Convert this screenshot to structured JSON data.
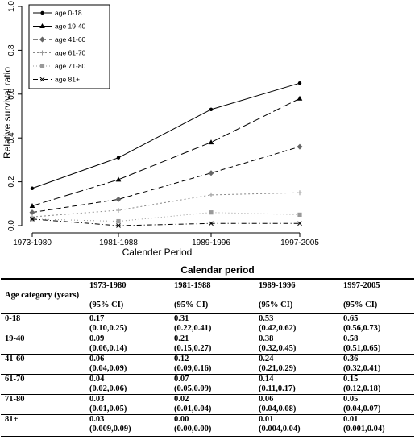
{
  "chart_data": {
    "type": "line",
    "categories": [
      "1973-1980",
      "1981-1988",
      "1989-1996",
      "1997-2005"
    ],
    "xlabel": "Calender Period",
    "ylabel": "Relative survival ratio",
    "ylim": [
      0,
      1.0
    ],
    "yticks": [
      "0.0",
      "0.2",
      "0.4",
      "0.6",
      "0.8",
      "1.0"
    ],
    "legend_position": "top-left",
    "grid": false,
    "series": [
      {
        "name": "age 0-18",
        "values": [
          0.17,
          0.31,
          0.53,
          0.65
        ],
        "marker": "circle",
        "dash": "solid"
      },
      {
        "name": "age 19-40",
        "values": [
          0.09,
          0.21,
          0.38,
          0.58
        ],
        "marker": "triangle",
        "dash": "long-dash"
      },
      {
        "name": "age 41-60",
        "values": [
          0.06,
          0.12,
          0.24,
          0.36
        ],
        "marker": "diamond",
        "dash": "dash"
      },
      {
        "name": "age 61-70",
        "values": [
          0.04,
          0.07,
          0.14,
          0.15
        ],
        "marker": "plus",
        "dash": "dot"
      },
      {
        "name": "age 71-80",
        "values": [
          0.03,
          0.02,
          0.06,
          0.05
        ],
        "marker": "square",
        "dash": "dense-dot"
      },
      {
        "name": "age 81+",
        "values": [
          0.03,
          0.0,
          0.01,
          0.01
        ],
        "marker": "cross",
        "dash": "dash-dot"
      }
    ]
  },
  "table": {
    "caption": "Calendar period",
    "header": {
      "col0": "Age category (years)",
      "periods": [
        "1973-1980",
        "1981-1988",
        "1989-1996",
        "1997-2005"
      ],
      "ci_label": "(95% CI)"
    },
    "rows": [
      {
        "age": "0-18",
        "values": [
          "0.17",
          "0.31",
          "0.53",
          "0.65"
        ],
        "ci": [
          "(0.10,0.25)",
          "(0.22,0.41)",
          "(0.42,0.62)",
          "(0.56,0.73)"
        ]
      },
      {
        "age": "19-40",
        "values": [
          "0.09",
          "0.21",
          "0.38",
          "0.58"
        ],
        "ci": [
          "(0.06,0.14)",
          "(0.15,0.27)",
          "(0.32,0.45)",
          "(0.51,0.65)"
        ]
      },
      {
        "age": "41-60",
        "values": [
          "0.06",
          "0.12",
          "0.24",
          "0.36"
        ],
        "ci": [
          "(0.04,0.09)",
          "(0.09,0.16)",
          "(0.21,0.29)",
          "(0.32,0.41)"
        ]
      },
      {
        "age": "61-70",
        "values": [
          "0.04",
          "0.07",
          "0.14",
          "0.15"
        ],
        "ci": [
          "(0.02,0.06)",
          "(0.05,0.09)",
          "(0.11,0.17)",
          "(0.12,0.18)"
        ]
      },
      {
        "age": "71-80",
        "values": [
          "0.03",
          "0.02",
          "0.06",
          "0.05"
        ],
        "ci": [
          "(0.01,0.05)",
          "(0.01,0.04)",
          "(0.04,0.08)",
          "(0.04,0.07)"
        ]
      },
      {
        "age": "81+",
        "values": [
          "0.03",
          "0.00",
          "0.01",
          "0.01"
        ],
        "ci": [
          "(0.009,0.09)",
          "(0.00,0.00)",
          "(0.004,0.04)",
          "(0.001,0.04)"
        ]
      }
    ]
  }
}
